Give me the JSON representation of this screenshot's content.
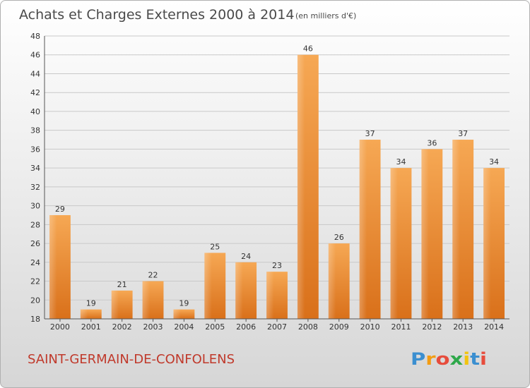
{
  "chart_data": {
    "type": "bar",
    "title": "Achats et Charges Externes 2000 à 2014",
    "subtitle": "(en milliers d'€)",
    "categories": [
      "2000",
      "2001",
      "2002",
      "2003",
      "2004",
      "2005",
      "2006",
      "2007",
      "2008",
      "2009",
      "2010",
      "2011",
      "2012",
      "2013",
      "2014"
    ],
    "values": [
      29,
      19,
      21,
      22,
      19,
      25,
      24,
      23,
      46,
      26,
      37,
      34,
      36,
      37,
      34
    ],
    "ylim": [
      18,
      48
    ],
    "yticks": [
      18,
      20,
      22,
      24,
      26,
      28,
      30,
      32,
      34,
      36,
      38,
      40,
      42,
      44,
      46,
      48
    ],
    "grid": true,
    "bar_color": "#f0922e",
    "xlabel": "",
    "ylabel": ""
  },
  "footer": {
    "commune": "SAINT-GERMAIN-DE-CONFOLENS",
    "commune_color": "#c0392b",
    "logo": "Proxiti"
  }
}
